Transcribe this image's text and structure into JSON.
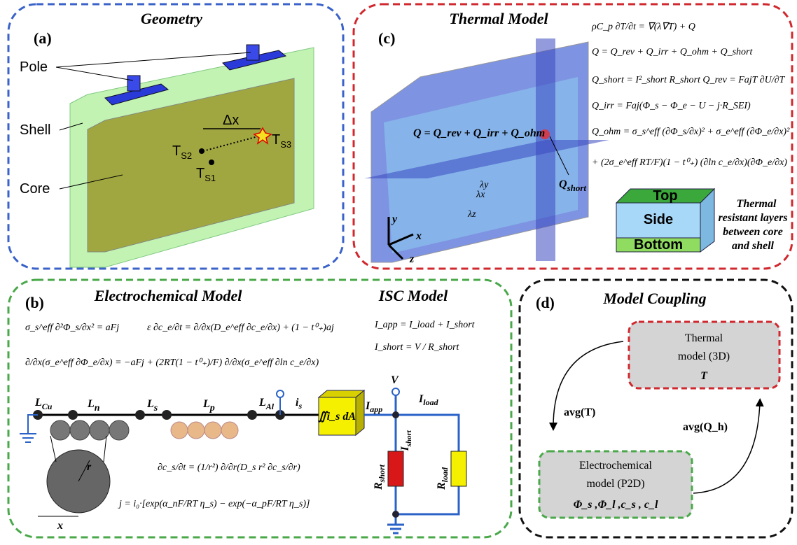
{
  "geometry": {
    "label": "(a)",
    "title": "Geometry",
    "pole": "Pole",
    "shell": "Shell",
    "core": "Core",
    "dx": "Δx",
    "ts1": {
      "main": "T",
      "sub": "S1"
    },
    "ts2": {
      "main": "T",
      "sub": "S2"
    },
    "ts3": {
      "main": "T",
      "sub": "S3"
    }
  },
  "thermal": {
    "label": "(c)",
    "title": "Thermal Model",
    "equations": [
      "ρC_p ∂T/∂t = ∇(λ∇T) + Q",
      "Q = Q_rev + Q_irr + Q_ohm + Q_short",
      "Q_short = I²_short R_short   Q_rev = FajT ∂U/∂T",
      "Q_irr = Faj(Φ_s − Φ_e − U − j·R_SEI)",
      "Q_ohm = σ_s^eff (∂Φ_s/∂x)² + σ_e^eff (∂Φ_e/∂x)²",
      "+ (2σ_e^eff RT/F)(1 − t⁰₊) (∂ln c_e/∂x)(∂Φ_e/∂x)"
    ],
    "q_sum": "Q = Q_rev + Q_irr + Q_ohm",
    "q_short": {
      "main": "Q",
      "sub": "short"
    },
    "lambda_y": "λy",
    "lambda_x": "λx",
    "lambda_z": "λz",
    "axis_x": "x",
    "axis_y": "y",
    "axis_z": "z",
    "top": "Top",
    "side": "Side",
    "bottom": "Bottom",
    "note": [
      "Thermal",
      "resistant layers",
      "between core",
      "and shell"
    ]
  },
  "electrochem": {
    "label": "(b)",
    "title": "Electrochemical Model",
    "equations": [
      "σ_s^eff ∂²Φ_s/∂x² = aFj",
      "ε ∂c_e/∂t = ∂/∂x(D_e^eff ∂c_e/∂x) + (1 − t⁰₊)aj",
      "∂/∂x(σ_e^eff ∂Φ_e/∂x) = −aFj + (2RT(1 − t⁰₊)/F) ∂/∂x(σ_e^eff ∂ln c_e/∂x)"
    ],
    "particle_equations": [
      "∂c_s/∂t = (1/r²) ∂/∂r(D_s r² ∂c_s/∂r)",
      "j = i₀·[exp(α_nF/RT η_s) − exp(−α_pF/RT η_s)]"
    ],
    "isc_title": "ISC Model",
    "isc_equations": [
      "I_app = I_load + I_short",
      "I_short = V / R_short"
    ],
    "l_cu": {
      "main": "L",
      "sub": "Cu"
    },
    "l_n": {
      "main": "L",
      "sub": "n"
    },
    "l_s": {
      "main": "L",
      "sub": "s"
    },
    "l_p": {
      "main": "L",
      "sub": "p"
    },
    "l_al": {
      "main": "L",
      "sub": "Al"
    },
    "i_s": {
      "main": "i",
      "sub": "s"
    },
    "integral": "∬i_s dA",
    "v": "V",
    "i_app": {
      "main": "I",
      "sub": "app"
    },
    "i_load": {
      "main": "I",
      "sub": "load"
    },
    "i_short": {
      "main": "I",
      "sub": "short"
    },
    "r_short": {
      "main": "R",
      "sub": "short"
    },
    "r_load": {
      "main": "R",
      "sub": "load"
    },
    "r": "r",
    "x": "x"
  },
  "coupling": {
    "label": "(d)",
    "title": "Model Coupling",
    "thermal_box": [
      "Thermal",
      "model (3D)",
      "T"
    ],
    "electro_box": [
      "Electrochemical",
      "model (P2D)",
      "Φ_s ,Φ_l ,c_s , c_l"
    ],
    "avg_t": "avg(T)",
    "avg_q": "avg(Q_h)"
  }
}
